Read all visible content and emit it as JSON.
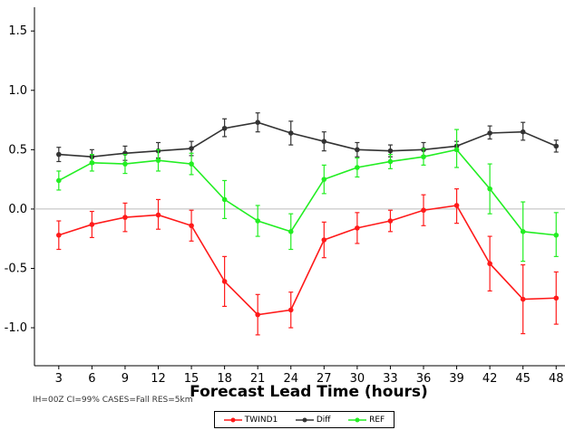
{
  "chart_data": {
    "type": "line",
    "x": [
      3,
      6,
      9,
      12,
      15,
      18,
      21,
      24,
      27,
      30,
      33,
      36,
      39,
      42,
      45,
      48
    ],
    "xlabel": "Forecast Lead Time (hours)",
    "ylabel": "",
    "xlim": [
      0.8,
      48.8
    ],
    "ylim": [
      -1.32,
      1.7
    ],
    "yticks": [
      1.5,
      1.0,
      0.5,
      0.0,
      -0.5,
      -1.0
    ],
    "ytick_labels": [
      "1.5",
      "1.0",
      "0.5",
      "0.0",
      "-0.5",
      "-1.0"
    ],
    "zero_line": true,
    "grid": false,
    "legend_position": "bottom",
    "series": [
      {
        "name": "TWIND1",
        "color": "#ff1a1a",
        "values": [
          -0.22,
          -0.13,
          -0.07,
          -0.05,
          -0.14,
          -0.61,
          -0.89,
          -0.85,
          -0.26,
          -0.16,
          -0.1,
          -0.01,
          0.03,
          -0.46,
          -0.76,
          -0.75
        ],
        "err_low": [
          -0.34,
          -0.24,
          -0.19,
          -0.17,
          -0.27,
          -0.82,
          -1.06,
          -1.0,
          -0.41,
          -0.29,
          -0.19,
          -0.14,
          -0.12,
          -0.69,
          -1.05,
          -0.97
        ],
        "err_high": [
          -0.1,
          -0.02,
          0.05,
          0.08,
          -0.01,
          -0.4,
          -0.72,
          -0.7,
          -0.11,
          -0.03,
          -0.01,
          0.12,
          0.17,
          -0.23,
          -0.47,
          -0.53
        ]
      },
      {
        "name": "Diff",
        "color": "#333333",
        "values": [
          0.46,
          0.44,
          0.47,
          0.49,
          0.51,
          0.68,
          0.73,
          0.64,
          0.57,
          0.5,
          0.49,
          0.5,
          0.53,
          0.64,
          0.65,
          0.53
        ],
        "err_low": [
          0.4,
          0.38,
          0.41,
          0.43,
          0.45,
          0.61,
          0.65,
          0.54,
          0.49,
          0.44,
          0.44,
          0.45,
          0.49,
          0.59,
          0.58,
          0.48
        ],
        "err_high": [
          0.52,
          0.5,
          0.53,
          0.56,
          0.57,
          0.76,
          0.81,
          0.74,
          0.65,
          0.56,
          0.54,
          0.56,
          0.57,
          0.7,
          0.73,
          0.58
        ]
      },
      {
        "name": "REF",
        "color": "#22ee22",
        "values": [
          0.24,
          0.39,
          0.38,
          0.41,
          0.38,
          0.08,
          -0.1,
          -0.19,
          0.25,
          0.35,
          0.4,
          0.44,
          0.5,
          0.17,
          -0.19,
          -0.22
        ],
        "err_low": [
          0.16,
          0.32,
          0.3,
          0.32,
          0.29,
          -0.08,
          -0.23,
          -0.34,
          0.13,
          0.27,
          0.34,
          0.37,
          0.35,
          -0.04,
          -0.44,
          -0.4
        ],
        "err_high": [
          0.32,
          0.46,
          0.46,
          0.5,
          0.47,
          0.24,
          0.03,
          -0.04,
          0.37,
          0.43,
          0.46,
          0.51,
          0.67,
          0.38,
          0.06,
          -0.03
        ]
      }
    ]
  },
  "footnote": "IH=00Z CI=99% CASES=Fall RES=5km",
  "legend": [
    "TWIND1",
    "Diff",
    "REF"
  ]
}
